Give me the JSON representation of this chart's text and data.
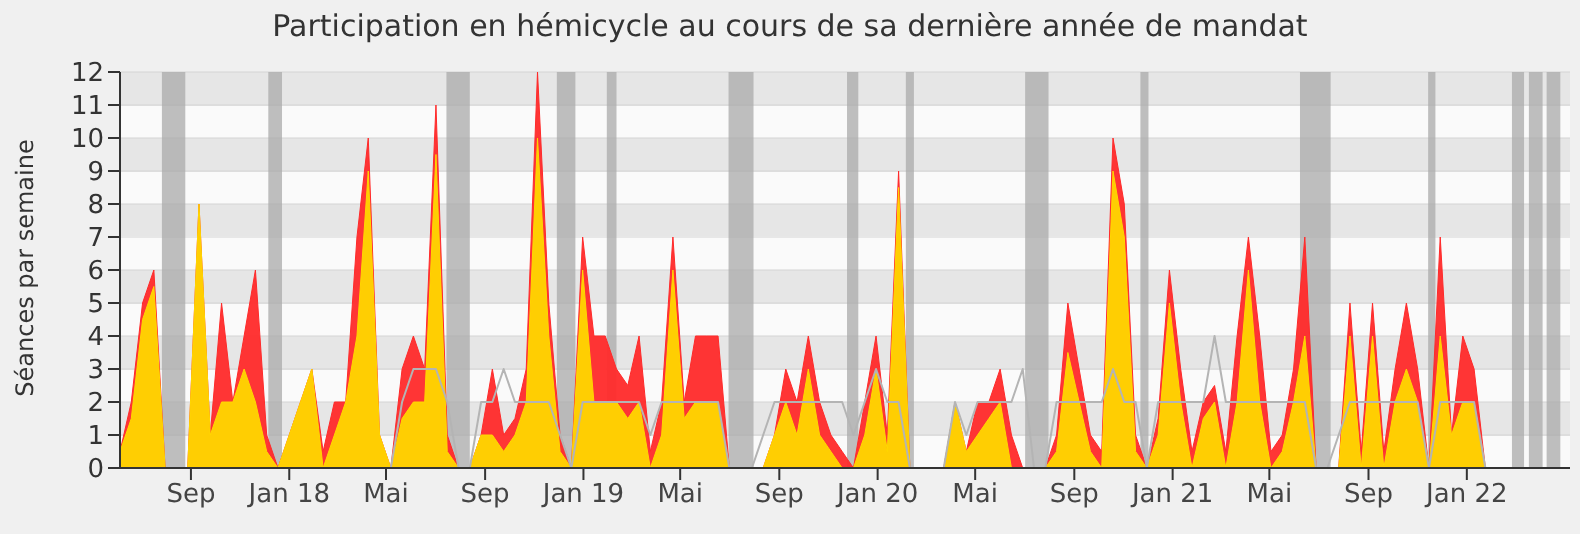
{
  "chart_data": {
    "type": "area",
    "title": "Participation en hémicycle au cours de sa dernière année de mandat",
    "ylabel": "Séances par semaine",
    "x": [
      "2017-06-05",
      "2017-06-19",
      "2017-07-03",
      "2017-07-17",
      "2017-07-31",
      "2017-08-14",
      "2017-08-28",
      "2017-09-11",
      "2017-09-25",
      "2017-10-09",
      "2017-10-23",
      "2017-11-06",
      "2017-11-20",
      "2017-12-04",
      "2017-12-18",
      "2018-01-01",
      "2018-01-15",
      "2018-01-29",
      "2018-02-12",
      "2018-02-26",
      "2018-03-12",
      "2018-03-26",
      "2018-04-09",
      "2018-04-23",
      "2018-05-07",
      "2018-05-21",
      "2018-06-04",
      "2018-06-18",
      "2018-07-02",
      "2018-07-16",
      "2018-07-30",
      "2018-08-13",
      "2018-08-27",
      "2018-09-10",
      "2018-09-24",
      "2018-10-08",
      "2018-10-22",
      "2018-11-05",
      "2018-11-19",
      "2018-12-03",
      "2018-12-17",
      "2018-12-31",
      "2019-01-14",
      "2019-01-28",
      "2019-02-11",
      "2019-02-25",
      "2019-03-11",
      "2019-03-25",
      "2019-04-08",
      "2019-04-22",
      "2019-05-06",
      "2019-05-20",
      "2019-06-03",
      "2019-06-17",
      "2019-07-01",
      "2019-07-15",
      "2019-07-29",
      "2019-08-12",
      "2019-08-26",
      "2019-09-09",
      "2019-09-23",
      "2019-10-07",
      "2019-10-21",
      "2019-11-04",
      "2019-11-18",
      "2019-12-02",
      "2019-12-16",
      "2019-12-30",
      "2020-01-13",
      "2020-01-27",
      "2020-02-10",
      "2020-02-24",
      "2020-03-09",
      "2020-03-23",
      "2020-04-06",
      "2020-04-20",
      "2020-05-04",
      "2020-05-18",
      "2020-06-01",
      "2020-06-15",
      "2020-06-29",
      "2020-07-13",
      "2020-07-27",
      "2020-08-10",
      "2020-08-24",
      "2020-09-07",
      "2020-09-21",
      "2020-10-05",
      "2020-10-19",
      "2020-11-02",
      "2020-11-16",
      "2020-11-30",
      "2020-12-14",
      "2020-12-28",
      "2021-01-11",
      "2021-01-25",
      "2021-02-08",
      "2021-02-22",
      "2021-03-08",
      "2021-03-22",
      "2021-04-05",
      "2021-04-19",
      "2021-05-03",
      "2021-05-17",
      "2021-05-31",
      "2021-06-14",
      "2021-06-28",
      "2021-07-12",
      "2021-07-26",
      "2021-08-09",
      "2021-08-23",
      "2021-09-06",
      "2021-09-20",
      "2021-10-04",
      "2021-10-18",
      "2021-11-01",
      "2021-11-15",
      "2021-11-29",
      "2021-12-13",
      "2021-12-27",
      "2022-01-10",
      "2022-01-24",
      "2022-02-07",
      "2022-02-21",
      "2022-03-07",
      "2022-03-21",
      "2022-04-04",
      "2022-04-18",
      "2022-05-02"
    ],
    "series": [
      {
        "color": "#ff2a2a",
        "values": [
          0.5,
          2,
          5,
          6,
          0,
          0,
          0,
          8,
          1,
          5,
          2,
          4,
          6,
          1,
          0,
          1,
          2,
          3,
          0.5,
          2,
          2,
          7,
          10,
          1,
          0,
          3,
          4,
          3,
          11,
          1,
          0,
          0,
          1,
          3,
          1,
          1.5,
          3,
          12,
          5,
          1,
          0,
          7,
          4,
          4,
          3,
          2.5,
          4,
          0.5,
          2,
          7,
          2,
          4,
          4,
          4,
          0,
          0,
          0,
          0,
          1,
          3,
          2,
          4,
          2,
          1,
          0.5,
          0,
          2,
          4,
          1,
          9,
          0,
          0,
          0,
          0,
          2,
          0.5,
          2,
          2,
          3,
          1,
          0,
          0,
          0,
          1,
          5,
          3,
          1,
          0.5,
          10,
          8,
          1,
          0,
          1.5,
          6,
          3,
          0.5,
          2,
          2.5,
          0.5,
          4,
          7,
          4,
          0.5,
          1,
          3,
          7,
          0,
          0,
          0,
          5,
          0.5,
          5,
          0.5,
          3,
          5,
          3,
          0,
          7,
          1,
          4,
          3,
          0,
          0,
          0,
          0,
          0,
          0,
          0,
          0
        ]
      },
      {
        "color": "#ffd700",
        "values": [
          0.5,
          1.5,
          4.5,
          5.5,
          0,
          0,
          0,
          8,
          1,
          2,
          2,
          3,
          2,
          0.5,
          0,
          1,
          2,
          3,
          0,
          1,
          2,
          4,
          9,
          1,
          0,
          1.5,
          2,
          2,
          9.5,
          0.5,
          0,
          0,
          1,
          1,
          0.5,
          1,
          2,
          10,
          4,
          0.5,
          0,
          6,
          2,
          2,
          2,
          1.5,
          2,
          0,
          1,
          6,
          1.5,
          2,
          2,
          2,
          0,
          0,
          0,
          0,
          1,
          2,
          1,
          3,
          1,
          0.5,
          0,
          0,
          1,
          3,
          0.5,
          8.5,
          0,
          0,
          0,
          0,
          2,
          0.5,
          1,
          1.5,
          2,
          0,
          0,
          0,
          0,
          0.5,
          3.5,
          2,
          0.5,
          0,
          9,
          7,
          0.5,
          0,
          1,
          5,
          2,
          0,
          1.5,
          2,
          0,
          2,
          6,
          2,
          0,
          0.5,
          2,
          4,
          0,
          0,
          0,
          4,
          0,
          4,
          0,
          2,
          3,
          2,
          0,
          4,
          1,
          2,
          2,
          0,
          0,
          0,
          0,
          0,
          0,
          0,
          0
        ]
      },
      {
        "type": "line",
        "color": "#b4b4b4",
        "values": [
          null,
          null,
          null,
          null,
          null,
          null,
          null,
          null,
          null,
          null,
          null,
          null,
          null,
          null,
          null,
          null,
          null,
          null,
          null,
          null,
          null,
          null,
          null,
          null,
          0,
          2,
          3,
          3,
          3,
          2,
          0,
          0,
          2,
          2,
          3,
          2,
          2,
          2,
          2,
          1,
          0,
          2,
          2,
          2,
          2,
          2,
          2,
          1,
          2,
          2,
          2,
          2,
          2,
          2,
          0,
          0,
          0,
          1,
          2,
          2,
          2,
          2,
          2,
          2,
          2,
          1,
          2,
          3,
          2,
          2,
          0,
          0,
          0,
          0,
          2,
          1,
          2,
          2,
          2,
          2,
          3,
          0,
          0,
          2,
          2,
          2,
          2,
          2,
          3,
          2,
          2,
          0,
          2,
          2,
          2,
          2,
          2,
          4,
          2,
          2,
          2,
          2,
          2,
          2,
          2,
          2,
          0,
          0,
          1,
          2,
          2,
          2,
          2,
          2,
          2,
          2,
          0,
          2,
          2,
          2,
          2,
          0,
          null,
          null,
          null,
          null,
          null,
          null,
          null
        ]
      }
    ],
    "xlim": [
      "2017-06-05",
      "2022-05-09"
    ],
    "xticks": [
      {
        "value": "2017-09-01",
        "label": "Sep"
      },
      {
        "value": "2018-01-01",
        "label": "Jan 18"
      },
      {
        "value": "2018-05-01",
        "label": "Mai"
      },
      {
        "value": "2018-09-01",
        "label": "Sep"
      },
      {
        "value": "2019-01-01",
        "label": "Jan 19"
      },
      {
        "value": "2019-05-01",
        "label": "Mai"
      },
      {
        "value": "2019-09-01",
        "label": "Sep"
      },
      {
        "value": "2020-01-01",
        "label": "Jan 20"
      },
      {
        "value": "2020-05-01",
        "label": "Mai"
      },
      {
        "value": "2020-09-01",
        "label": "Sep"
      },
      {
        "value": "2021-01-01",
        "label": "Jan 21"
      },
      {
        "value": "2021-05-01",
        "label": "Mai"
      },
      {
        "value": "2021-09-01",
        "label": "Sep"
      },
      {
        "value": "2022-01-01",
        "label": "Jan 22"
      }
    ],
    "ylim": [
      0,
      12
    ],
    "yticks": [
      0,
      1,
      2,
      3,
      4,
      5,
      6,
      7,
      8,
      9,
      10,
      11,
      12
    ],
    "grid": "y",
    "bands": [
      {
        "axis": "x",
        "from": "2017-07-27",
        "to": "2017-08-25",
        "color": "#aaaaaa"
      },
      {
        "axis": "x",
        "from": "2017-12-06",
        "to": "2017-12-23",
        "color": "#aaaaaa"
      },
      {
        "axis": "x",
        "from": "2018-07-15",
        "to": "2018-08-13",
        "color": "#aaaaaa"
      },
      {
        "axis": "x",
        "from": "2018-11-29",
        "to": "2018-12-22",
        "color": "#aaaaaa"
      },
      {
        "axis": "x",
        "from": "2019-01-30",
        "to": "2019-02-11",
        "color": "#aaaaaa"
      },
      {
        "axis": "x",
        "from": "2019-06-30",
        "to": "2019-07-31",
        "color": "#aaaaaa"
      },
      {
        "axis": "x",
        "from": "2019-11-24",
        "to": "2019-12-08",
        "color": "#aaaaaa"
      },
      {
        "axis": "x",
        "from": "2020-02-05",
        "to": "2020-02-15",
        "color": "#aaaaaa"
      },
      {
        "axis": "x",
        "from": "2020-07-02",
        "to": "2020-07-31",
        "color": "#aaaaaa"
      },
      {
        "axis": "x",
        "from": "2020-11-22",
        "to": "2020-12-02",
        "color": "#aaaaaa"
      },
      {
        "axis": "x",
        "from": "2021-06-08",
        "to": "2021-07-16",
        "color": "#aaaaaa"
      },
      {
        "axis": "x",
        "from": "2021-11-14",
        "to": "2021-11-23",
        "color": "#aaaaaa"
      },
      {
        "axis": "x",
        "from": "2022-02-26",
        "to": "2022-03-13",
        "color": "#aaaaaa"
      },
      {
        "axis": "x",
        "from": "2022-03-19",
        "to": "2022-04-05",
        "color": "#aaaaaa"
      },
      {
        "axis": "x",
        "from": "2022-04-10",
        "to": "2022-04-27",
        "color": "#aaaaaa"
      }
    ],
    "legend": false
  }
}
